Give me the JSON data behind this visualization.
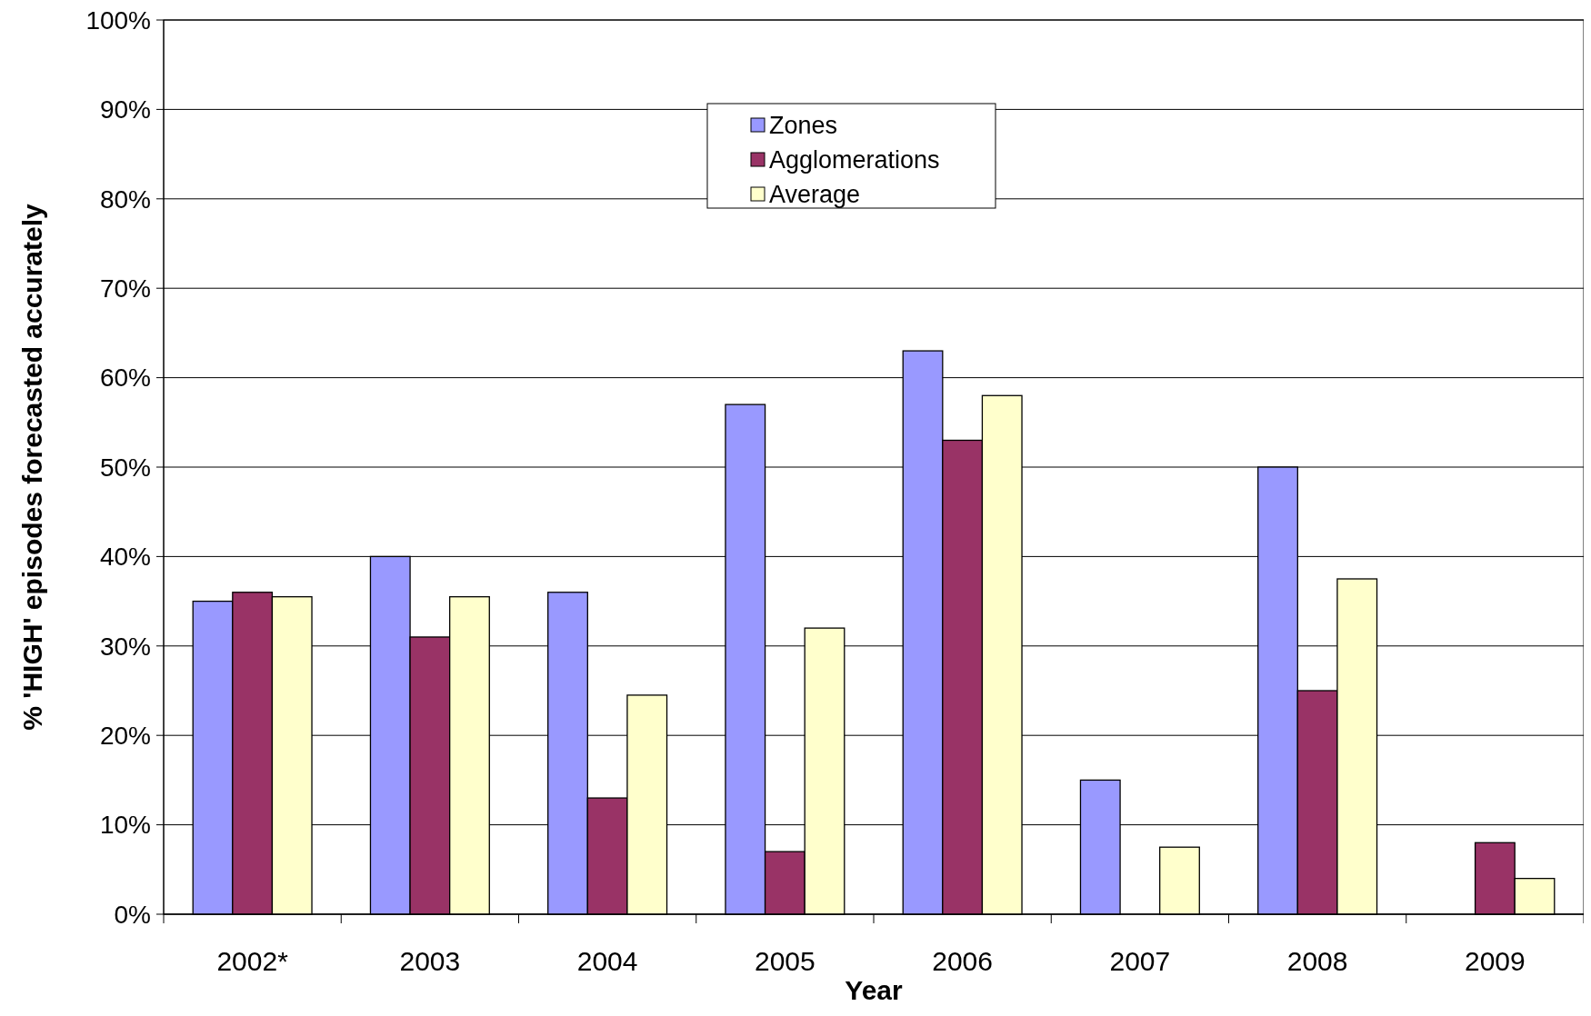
{
  "chart_data": {
    "type": "bar",
    "xlabel": "Year",
    "ylabel": "% 'HIGH' episodes forecasted accurately",
    "categories": [
      "2002*",
      "2003",
      "2004",
      "2005",
      "2006",
      "2007",
      "2008",
      "2009"
    ],
    "series": [
      {
        "name": "Zones",
        "color": "#9999ff",
        "values": [
          35,
          40,
          36,
          57,
          63,
          15,
          50,
          null
        ]
      },
      {
        "name": "Agglomerations",
        "color": "#993366",
        "values": [
          36,
          31,
          13,
          7,
          53,
          null,
          25,
          8
        ]
      },
      {
        "name": "Average",
        "color": "#ffffcc",
        "values": [
          35.5,
          35.5,
          24.5,
          32,
          58,
          7.5,
          37.5,
          4
        ]
      }
    ],
    "ylim": [
      0,
      100
    ],
    "yticks": [
      {
        "value": 0,
        "label": "0%"
      },
      {
        "value": 10,
        "label": "10%"
      },
      {
        "value": 20,
        "label": "20%"
      },
      {
        "value": 30,
        "label": "30%"
      },
      {
        "value": 40,
        "label": "40%"
      },
      {
        "value": 50,
        "label": "50%"
      },
      {
        "value": 60,
        "label": "60%"
      },
      {
        "value": 70,
        "label": "70%"
      },
      {
        "value": 80,
        "label": "80%"
      },
      {
        "value": 90,
        "label": "90%"
      },
      {
        "value": 100,
        "label": "100%"
      }
    ],
    "grid": "y",
    "legend": "top"
  }
}
